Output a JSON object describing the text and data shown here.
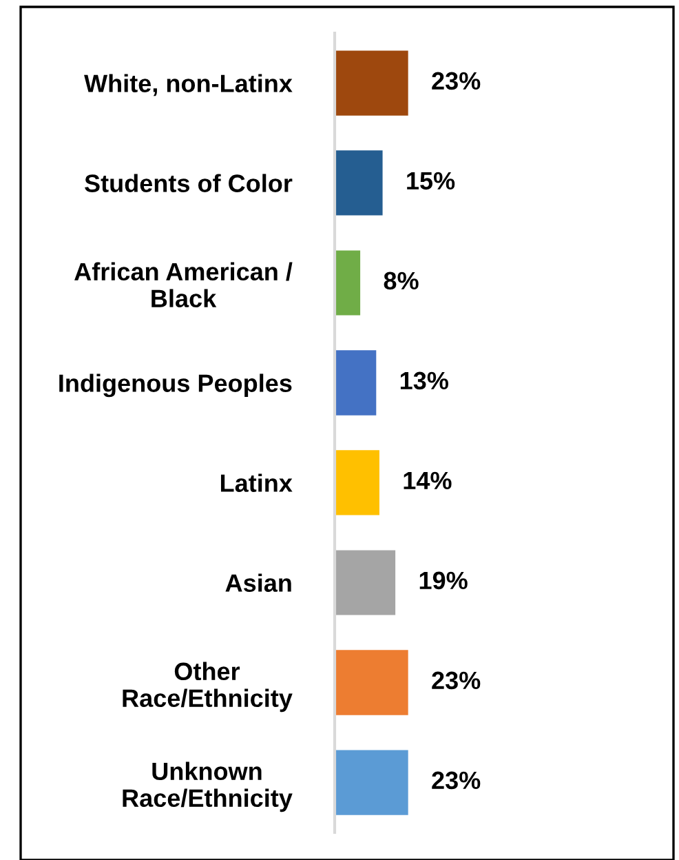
{
  "chart_data": {
    "type": "bar",
    "orientation": "horizontal",
    "categories": [
      "White, non-Latinx",
      "Students of Color",
      "African American /\nBlack",
      "Indigenous Peoples",
      "Latinx",
      "Asian",
      "Other\nRace/Ethnicity",
      "Unknown\nRace/Ethnicity"
    ],
    "values": [
      23,
      15,
      8,
      13,
      14,
      19,
      23,
      23
    ],
    "colors": [
      "#9e480e",
      "#255e91",
      "#70ad47",
      "#4472c4",
      "#ffc000",
      "#a5a5a5",
      "#ed7d31",
      "#5b9bd5"
    ],
    "value_labels": [
      "23%",
      "15%",
      "8%",
      "13%",
      "14%",
      "19%",
      "23%",
      "23%"
    ]
  }
}
